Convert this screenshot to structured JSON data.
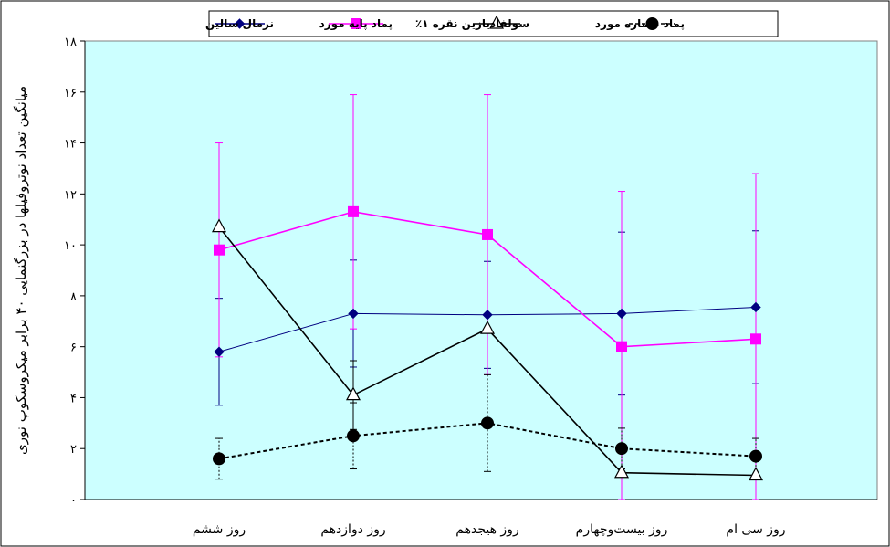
{
  "chart_data": {
    "type": "line",
    "ylabel": "میانگین تعداد نوتروفیلها در بزرگنمایی ۴۰ برابر میکروسکوپ نوری",
    "xlabel": "",
    "ylim": [
      0,
      18
    ],
    "yticks": [
      0,
      2,
      4,
      6,
      8,
      10,
      12,
      14,
      16,
      18
    ],
    "ytick_labels": [
      "۰",
      "۲",
      "۴",
      "۶",
      "۸",
      "۱۰",
      "۱۲",
      "۱۴",
      "۱۶",
      "۱۸"
    ],
    "categories": [
      "روز ششم",
      "روز دوازدهم",
      "روز هیجدهم",
      "روز بیست‌وچهارم",
      "روز سی ام"
    ],
    "grid": false,
    "legend_position": "top",
    "plot_background": "#ccffff",
    "series": [
      {
        "name": "نرمال سالین",
        "color": "#000080",
        "marker": "diamond",
        "line_style": "solid",
        "values": [
          5.8,
          7.3,
          7.25,
          7.3,
          7.55
        ],
        "error": [
          2.1,
          2.1,
          2.1,
          3.2,
          3.0
        ]
      },
      {
        "name": "پماد پایه مورد",
        "color": "#ff00ff",
        "marker": "square",
        "line_style": "solid",
        "values": [
          9.8,
          11.3,
          10.4,
          6.0,
          6.3
        ],
        "error": [
          4.2,
          4.6,
          5.5,
          6.1,
          6.5
        ]
      },
      {
        "name": "سولفادیازین نقره ۱٪",
        "color": "#000000",
        "marker": "triangle",
        "line_style": "solid",
        "values": [
          10.7,
          4.1,
          6.7,
          1.05,
          0.95
        ],
        "error": [
          0,
          1.35,
          0,
          0,
          0
        ]
      },
      {
        "name": "پماد عصاره مورد",
        "color": "#000000",
        "marker": "circle",
        "line_style": "dashed",
        "values": [
          1.6,
          2.5,
          3.0,
          2.0,
          1.7
        ],
        "error": [
          0.8,
          1.3,
          1.9,
          0.8,
          0.7
        ]
      }
    ]
  }
}
